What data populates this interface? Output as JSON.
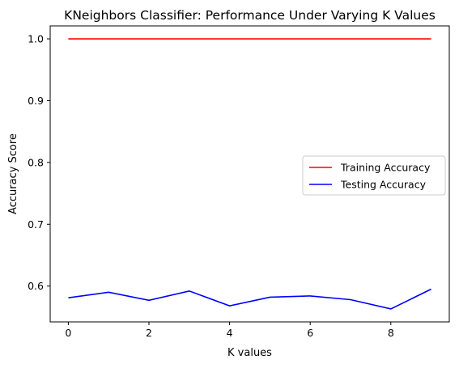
{
  "chart_data": {
    "type": "line",
    "title": "KNeighbors Classifier: Performance Under Varying K Values",
    "xlabel": "K values",
    "ylabel": "Accuracy Score",
    "x": [
      0,
      1,
      2,
      3,
      4,
      5,
      6,
      7,
      8,
      9
    ],
    "xlim": [
      -0.45,
      9.45
    ],
    "ylim": [
      0.542,
      1.021
    ],
    "xticks": [
      0,
      2,
      4,
      6,
      8
    ],
    "yticks": [
      0.6,
      0.7,
      0.8,
      0.9,
      1.0
    ],
    "xtick_labels": [
      "0",
      "2",
      "4",
      "6",
      "8"
    ],
    "ytick_labels": [
      "0.6",
      "0.7",
      "0.8",
      "0.9",
      "1.0"
    ],
    "grid": false,
    "legend_position": "center-right",
    "series": [
      {
        "name": "Training Accuracy",
        "color": "#ff0000",
        "values": [
          1.0,
          1.0,
          1.0,
          1.0,
          1.0,
          1.0,
          1.0,
          1.0,
          1.0,
          1.0
        ]
      },
      {
        "name": "Testing Accuracy",
        "color": "#0000ff",
        "values": [
          0.581,
          0.59,
          0.577,
          0.592,
          0.568,
          0.582,
          0.584,
          0.578,
          0.563,
          0.595
        ]
      }
    ]
  }
}
